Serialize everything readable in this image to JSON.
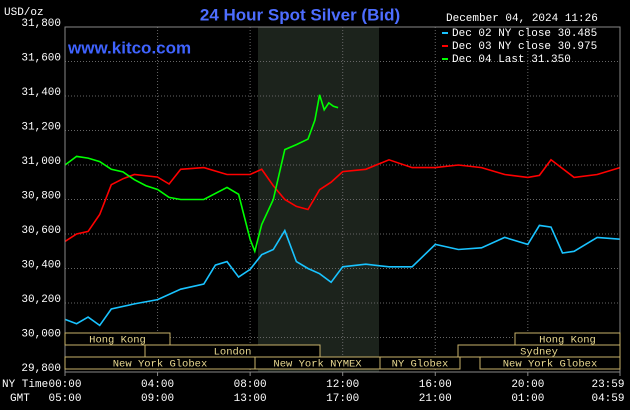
{
  "chart_data": {
    "type": "line",
    "title": "24 Hour Spot Silver (Bid)",
    "y_label": "USD/oz",
    "timestamp": "December 04, 2024 11:26",
    "watermark": "www.kitco.com",
    "x_row_labels": [
      "NY Time",
      "GMT"
    ],
    "xlim": [
      0,
      23.9833
    ],
    "xticks": [
      {
        "value": 0,
        "label": "00:00"
      },
      {
        "value": 4,
        "label": "04:00"
      },
      {
        "value": 8,
        "label": "08:00"
      },
      {
        "value": 12,
        "label": "12:00"
      },
      {
        "value": 16,
        "label": "16:00"
      },
      {
        "value": 20,
        "label": "20:00"
      },
      {
        "value": 23.9833,
        "label": "23:59"
      }
    ],
    "gmt_labels": [
      "05:00",
      "09:00",
      "13:00",
      "17:00",
      "21:00",
      "01:00",
      "04:59"
    ],
    "ylim": [
      29800,
      31800
    ],
    "yticks": [
      {
        "value": 29800,
        "label": "29,800"
      },
      {
        "value": 30000,
        "label": "30,000"
      },
      {
        "value": 30200,
        "label": "30,200"
      },
      {
        "value": 30400,
        "label": "30,400"
      },
      {
        "value": 30600,
        "label": "30,600"
      },
      {
        "value": 30800,
        "label": "30,800"
      },
      {
        "value": 31000,
        "label": "31,000"
      },
      {
        "value": 31200,
        "label": "31,200"
      },
      {
        "value": 31400,
        "label": "31,400"
      },
      {
        "value": 31600,
        "label": "31,600"
      },
      {
        "value": 31800,
        "label": "31,800"
      }
    ],
    "grid": true,
    "sessions": [
      "Hong Kong",
      "London",
      "New York Globex",
      "New York NYMEX",
      "NY Globex",
      "Hong Kong",
      "Sydney",
      "New York Globex"
    ],
    "series": [
      {
        "name": "Dec 02 NY close 30.485",
        "color": "#19c3ff",
        "x": [
          0,
          0.5,
          1,
          1.5,
          2,
          3,
          4,
          5,
          6,
          6.5,
          7,
          7.5,
          8,
          8.5,
          9,
          9.5,
          10,
          10.5,
          11,
          11.5,
          12,
          13,
          14,
          15,
          16,
          17,
          18,
          19,
          20,
          20.5,
          21,
          21.5,
          22,
          23,
          23.9833
        ],
        "values": [
          30105,
          30080,
          30118,
          30070,
          30165,
          30195,
          30220,
          30280,
          30310,
          30420,
          30440,
          30350,
          30395,
          30480,
          30510,
          30620,
          30440,
          30400,
          30370,
          30320,
          30410,
          30425,
          30410,
          30410,
          30540,
          30510,
          30520,
          30580,
          30540,
          30650,
          30640,
          30490,
          30500,
          30580,
          30570
        ]
      },
      {
        "name": "Dec 03 NY close 30.975",
        "color": "#ff0000",
        "x": [
          0,
          0.5,
          1,
          1.5,
          2,
          2.5,
          3,
          4,
          4.5,
          5,
          6,
          7,
          8,
          8.5,
          9,
          9.5,
          10,
          10.5,
          11,
          11.5,
          12,
          13,
          14,
          15,
          16,
          17,
          18,
          19,
          20,
          20.5,
          21,
          22,
          23,
          23.9833
        ],
        "values": [
          30557,
          30600,
          30615,
          30713,
          30886,
          30920,
          30945,
          30930,
          30890,
          30975,
          30985,
          30945,
          30945,
          30975,
          30880,
          30800,
          30760,
          30742,
          30857,
          30900,
          30962,
          30975,
          31030,
          30985,
          30985,
          31000,
          30985,
          30945,
          30928,
          30940,
          31030,
          30928,
          30945,
          30985
        ]
      },
      {
        "name": "Dec 04 Last 31.350",
        "color": "#00ff00",
        "x": [
          0,
          0.5,
          1,
          1.5,
          2,
          2.5,
          3,
          3.5,
          4,
          4.5,
          5,
          6,
          7,
          7.5,
          8,
          8.2,
          8.5,
          9,
          9.5,
          10,
          10.5,
          10.8,
          11,
          11.2,
          11.4,
          11.6,
          11.8
        ],
        "values": [
          31000,
          31050,
          31040,
          31020,
          30975,
          30960,
          30915,
          30880,
          30858,
          30812,
          30800,
          30800,
          30870,
          30830,
          30569,
          30500,
          30655,
          30800,
          31089,
          31118,
          31150,
          31260,
          31407,
          31320,
          31360,
          31340,
          31332
        ]
      }
    ]
  }
}
